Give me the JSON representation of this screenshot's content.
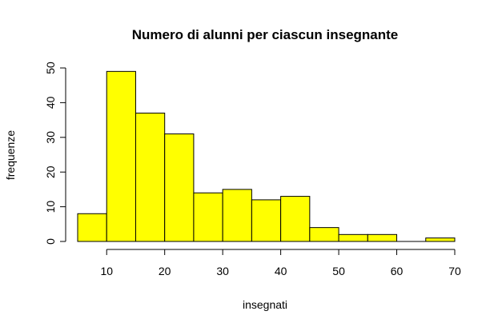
{
  "chart_data": {
    "type": "bar",
    "title": "Numero di alunni per ciascun insegnante",
    "xlabel": "insegnati",
    "ylabel": "frequenze",
    "bins": [
      {
        "from": 5,
        "to": 10,
        "value": 8
      },
      {
        "from": 10,
        "to": 15,
        "value": 49
      },
      {
        "from": 15,
        "to": 20,
        "value": 37
      },
      {
        "from": 20,
        "to": 25,
        "value": 31
      },
      {
        "from": 25,
        "to": 30,
        "value": 14
      },
      {
        "from": 30,
        "to": 35,
        "value": 15
      },
      {
        "from": 35,
        "to": 40,
        "value": 12
      },
      {
        "from": 40,
        "to": 45,
        "value": 13
      },
      {
        "from": 45,
        "to": 50,
        "value": 4
      },
      {
        "from": 50,
        "to": 55,
        "value": 2
      },
      {
        "from": 55,
        "to": 60,
        "value": 2
      },
      {
        "from": 60,
        "to": 65,
        "value": 0
      },
      {
        "from": 65,
        "to": 70,
        "value": 1
      }
    ],
    "x_ticks": [
      10,
      20,
      30,
      40,
      50,
      60,
      70
    ],
    "y_ticks": [
      0,
      10,
      20,
      30,
      40,
      50
    ],
    "xlim": [
      5,
      70
    ],
    "ylim": [
      0,
      50
    ],
    "bar_color": "#ffff00",
    "grid": false
  }
}
